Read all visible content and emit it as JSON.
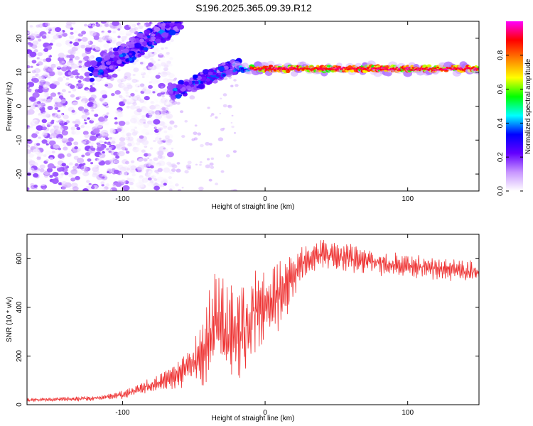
{
  "title": "S196.2025.365.09.39.R12",
  "chart_data": [
    {
      "type": "heatmap",
      "xlabel": "Height of straight line (km)",
      "ylabel": "Frequency (Hz)",
      "xlim": [
        -167,
        150
      ],
      "ylim": [
        -25,
        25
      ],
      "xticks": [
        -100,
        0,
        100
      ],
      "yticks": [
        -20,
        -10,
        0,
        10,
        20
      ],
      "colorbar": {
        "label": "Normalized spectral amplitude",
        "range": [
          0,
          1
        ],
        "ticks": [
          0.0,
          0.2,
          0.4,
          0.6,
          0.8
        ],
        "tick_labels": [
          "0.0",
          "0.2",
          "0.4",
          "0.6",
          "0.8"
        ],
        "colors": [
          "#ffffff",
          "#c896ff",
          "#6400ff",
          "#0000ff",
          "#00ffff",
          "#00ff00",
          "#ffff00",
          "#ff8000",
          "#ff0000",
          "#ff00ff"
        ]
      },
      "features": {
        "signal_line": {
          "frequency": 11,
          "x_start": -10,
          "x_end": 150
        },
        "rising_branch_upper": {
          "x_start": -120,
          "y_start": 10,
          "x_end": -60,
          "y_end": 25
        },
        "rising_branch_lower": {
          "x_start": -65,
          "y_start": 4,
          "x_end": -20,
          "y_end": 12
        },
        "noise_region_x": [
          -167,
          -100
        ]
      }
    },
    {
      "type": "line",
      "xlabel": "Height of straight line (km)",
      "ylabel": "SNR (10 * v/v)",
      "xlim": [
        -167,
        150
      ],
      "ylim": [
        0,
        700
      ],
      "xticks": [
        -100,
        0,
        100
      ],
      "yticks": [
        0,
        200,
        400,
        600
      ],
      "color": "#ee3333",
      "profile": [
        {
          "x": -167,
          "y": 20
        },
        {
          "x": -120,
          "y": 25
        },
        {
          "x": -100,
          "y": 40
        },
        {
          "x": -80,
          "y": 80
        },
        {
          "x": -60,
          "y": 120
        },
        {
          "x": -45,
          "y": 200
        },
        {
          "x": -35,
          "y": 330
        },
        {
          "x": -25,
          "y": 260
        },
        {
          "x": -15,
          "y": 300
        },
        {
          "x": -5,
          "y": 400
        },
        {
          "x": 5,
          "y": 430
        },
        {
          "x": 15,
          "y": 480
        },
        {
          "x": 25,
          "y": 580
        },
        {
          "x": 40,
          "y": 620
        },
        {
          "x": 60,
          "y": 600
        },
        {
          "x": 80,
          "y": 580
        },
        {
          "x": 100,
          "y": 570
        },
        {
          "x": 120,
          "y": 560
        },
        {
          "x": 150,
          "y": 545
        }
      ],
      "oscillation_amplitude": [
        {
          "x": -167,
          "a": 8
        },
        {
          "x": -110,
          "a": 12
        },
        {
          "x": -70,
          "a": 40
        },
        {
          "x": -50,
          "a": 90
        },
        {
          "x": -35,
          "a": 250
        },
        {
          "x": -20,
          "a": 230
        },
        {
          "x": -5,
          "a": 200
        },
        {
          "x": 10,
          "a": 150
        },
        {
          "x": 30,
          "a": 70
        },
        {
          "x": 80,
          "a": 55
        },
        {
          "x": 150,
          "a": 45
        }
      ]
    }
  ]
}
